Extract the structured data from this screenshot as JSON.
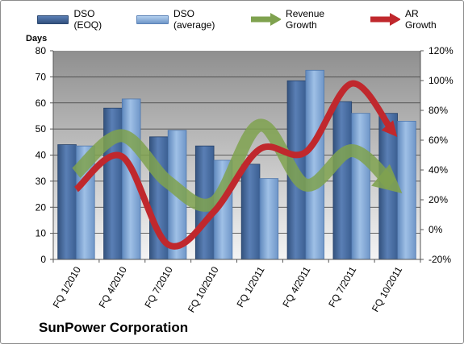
{
  "chart_data": {
    "type": "bar",
    "title": "SunPower Corporation",
    "ylabel": "Days",
    "ylim": [
      0,
      80
    ],
    "y_ticks": [
      "0",
      "10",
      "20",
      "30",
      "40",
      "50",
      "60",
      "70",
      "80"
    ],
    "y2lim": [
      -20,
      120
    ],
    "y2_ticks": [
      "-20%",
      "0%",
      "20%",
      "40%",
      "60%",
      "80%",
      "100%",
      "120%"
    ],
    "categories": [
      "FQ 1/2010",
      "FQ 4/2010",
      "FQ 7/2010",
      "FQ 10/2010",
      "FQ 1/2011",
      "FQ 4/2011",
      "FQ 7/2011",
      "FQ 10/2011"
    ],
    "grid": true,
    "legend_position": "top",
    "series": [
      {
        "name": "DSO (EOQ)",
        "kind": "bar",
        "axis": "left",
        "color": "#4a6da3",
        "values": [
          44,
          58,
          47,
          43.5,
          36.5,
          68.5,
          60.5,
          56
        ]
      },
      {
        "name": "DSO (average)",
        "kind": "bar",
        "axis": "left",
        "color": "#7ea7d6",
        "values": [
          43.5,
          61.5,
          49.5,
          38,
          31,
          72.5,
          56,
          53
        ]
      },
      {
        "name": "Revenue Growth",
        "kind": "arrow-line",
        "axis": "right",
        "color": "#7fa24f",
        "values": [
          38,
          63,
          32,
          18,
          70,
          30,
          53,
          27
        ]
      },
      {
        "name": "AR Growth",
        "kind": "arrow-line",
        "axis": "right",
        "color": "#c0282d",
        "values": [
          27,
          49,
          -10,
          12,
          54,
          52,
          98,
          62
        ]
      }
    ]
  }
}
